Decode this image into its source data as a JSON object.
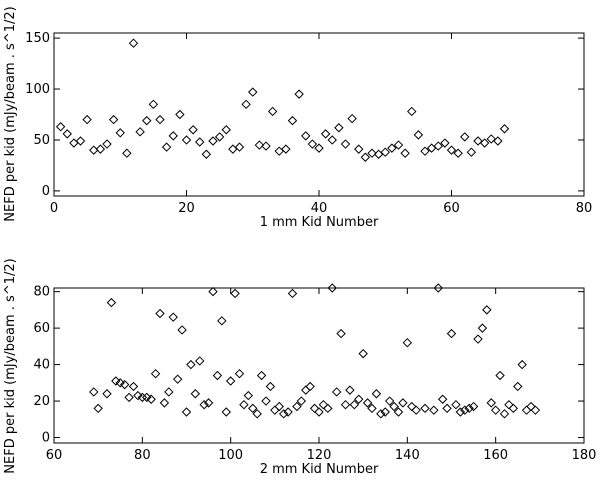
{
  "chart_data": [
    {
      "type": "scatter",
      "marker": "diamond",
      "xlabel": "1 mm Kid Number",
      "ylabel": "NEFD per kid (mJy/beam . s^1/2)",
      "xlim": [
        0,
        80
      ],
      "ylim": [
        -5,
        155
      ],
      "xticks": [
        0,
        20,
        40,
        60,
        80
      ],
      "yticks": [
        0,
        50,
        100,
        150
      ],
      "x": [
        1,
        2,
        3,
        4,
        5,
        6,
        7,
        8,
        9,
        10,
        11,
        12,
        13,
        14,
        15,
        16,
        17,
        18,
        19,
        20,
        21,
        22,
        23,
        24,
        25,
        26,
        27,
        28,
        29,
        30,
        31,
        32,
        33,
        34,
        35,
        36,
        37,
        38,
        39,
        40,
        41,
        42,
        43,
        44,
        45,
        46,
        47,
        48,
        49,
        50,
        51,
        52,
        53,
        54,
        55,
        56,
        57,
        58,
        59,
        60,
        61,
        62,
        63,
        64,
        65,
        66,
        67,
        68
      ],
      "y": [
        63,
        56,
        47,
        49,
        70,
        40,
        41,
        46,
        70,
        57,
        37,
        145,
        58,
        69,
        85,
        70,
        43,
        54,
        75,
        50,
        60,
        48,
        36,
        49,
        53,
        60,
        41,
        43,
        85,
        97,
        45,
        44,
        78,
        39,
        41,
        69,
        95,
        54,
        46,
        42,
        56,
        50,
        62,
        46,
        71,
        41,
        33,
        37,
        36,
        38,
        42,
        45,
        37,
        78,
        55,
        39,
        42,
        44,
        47,
        40,
        37,
        53,
        38,
        49,
        47,
        51,
        49,
        61
      ]
    },
    {
      "type": "scatter",
      "marker": "diamond",
      "xlabel": "2 mm Kid Number",
      "ylabel": "NEFD per kid (mJy/beam . s^1/2)",
      "xlim": [
        60,
        180
      ],
      "ylim": [
        -3,
        82
      ],
      "xticks": [
        60,
        80,
        100,
        120,
        140,
        160,
        180
      ],
      "yticks": [
        0,
        20,
        40,
        60,
        80
      ],
      "x": [
        69,
        70,
        72,
        73,
        74,
        75,
        76,
        77,
        78,
        79,
        80,
        81,
        82,
        83,
        84,
        85,
        86,
        87,
        88,
        89,
        90,
        91,
        92,
        93,
        94,
        95,
        96,
        97,
        98,
        99,
        100,
        101,
        102,
        103,
        104,
        105,
        106,
        107,
        108,
        109,
        110,
        111,
        112,
        113,
        114,
        115,
        116,
        117,
        118,
        119,
        120,
        121,
        122,
        123,
        124,
        125,
        126,
        127,
        128,
        129,
        130,
        131,
        132,
        133,
        134,
        135,
        136,
        137,
        138,
        139,
        140,
        141,
        142,
        144,
        146,
        147,
        148,
        149,
        150,
        151,
        152,
        153,
        154,
        155,
        156,
        157,
        158,
        159,
        160,
        161,
        162,
        163,
        164,
        165,
        166,
        167,
        168,
        169
      ],
      "y": [
        25,
        16,
        24,
        74,
        31,
        30,
        29,
        22,
        28,
        23,
        22,
        22,
        21,
        35,
        68,
        19,
        25,
        66,
        32,
        59,
        14,
        40,
        24,
        42,
        18,
        19,
        80,
        34,
        64,
        14,
        31,
        79,
        35,
        18,
        23,
        16,
        13,
        34,
        20,
        28,
        15,
        17,
        13,
        14,
        79,
        17,
        20,
        26,
        28,
        16,
        14,
        18,
        16,
        82,
        25,
        57,
        18,
        26,
        18,
        21,
        46,
        19,
        16,
        24,
        13,
        14,
        20,
        17,
        14,
        19,
        52,
        17,
        15,
        16,
        15,
        82,
        21,
        16,
        57,
        18,
        14,
        15,
        16,
        17,
        54,
        60,
        70,
        19,
        15,
        34,
        13,
        18,
        16,
        28,
        40,
        15,
        17,
        15
      ]
    }
  ]
}
